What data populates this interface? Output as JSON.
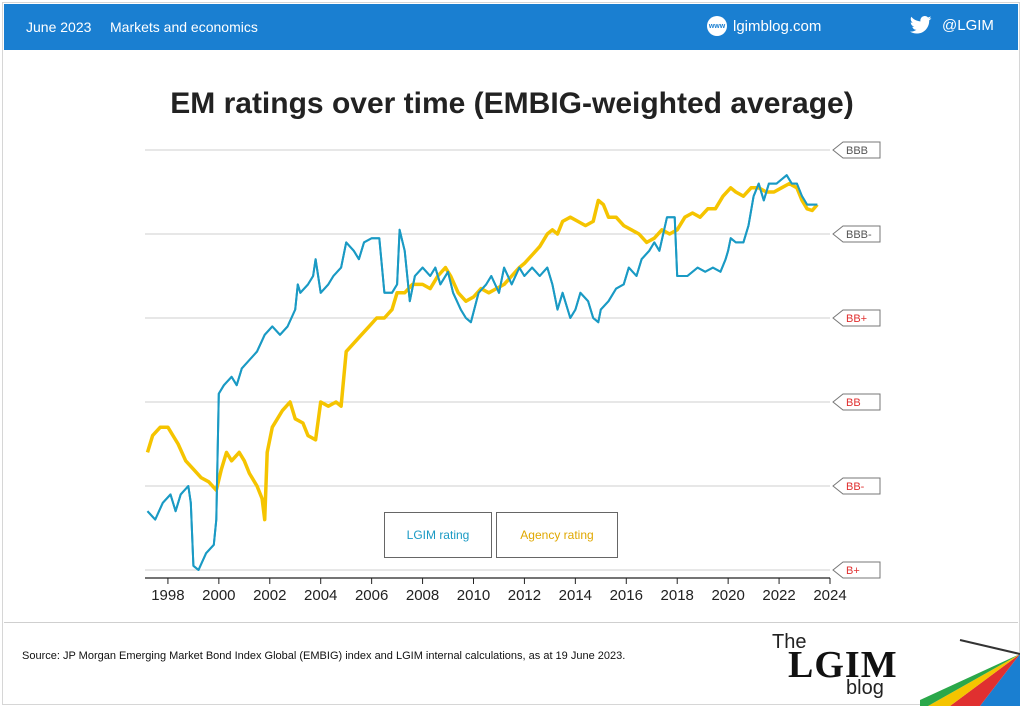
{
  "header": {
    "date": "June 2023",
    "section": "Markets and economics",
    "site": "lgimblog.com",
    "site_icon": "www",
    "twitter": "@LGIM",
    "bar_color": "#1a7fd1"
  },
  "footer": {
    "source": "Source: JP Morgan Emerging Market Bond Index Global (EMBIG) index and LGIM internal calculations, as at 19 June 2023.",
    "logo_the": "The",
    "logo_main": "LGIM",
    "logo_blog": "blog"
  },
  "chart_data": {
    "type": "line",
    "title": "EM ratings over time (EMBIG-weighted average)",
    "xlim": [
      1997.1,
      2024
    ],
    "ylim": [
      0,
      5.1
    ],
    "x_ticks": [
      1998,
      2000,
      2002,
      2004,
      2006,
      2008,
      2010,
      2012,
      2014,
      2016,
      2018,
      2020,
      2022,
      2024
    ],
    "y_categories": [
      {
        "label": "BBB",
        "value": 5,
        "color": "#555555"
      },
      {
        "label": "BBB-",
        "value": 4,
        "color": "#555555"
      },
      {
        "label": "BB+",
        "value": 3,
        "color": "#e03030"
      },
      {
        "label": "BB",
        "value": 2,
        "color": "#e03030"
      },
      {
        "label": "BB-",
        "value": 1,
        "color": "#e03030"
      },
      {
        "label": "B+",
        "value": 0,
        "color": "#e03030"
      }
    ],
    "grid": true,
    "series": [
      {
        "name": "LGIM rating",
        "color": "#1a9ac4",
        "points": [
          [
            1997.2,
            0.7
          ],
          [
            1997.5,
            0.6
          ],
          [
            1997.8,
            0.8
          ],
          [
            1998.1,
            0.9
          ],
          [
            1998.3,
            0.7
          ],
          [
            1998.5,
            0.9
          ],
          [
            1998.8,
            1.0
          ],
          [
            1998.9,
            0.8
          ],
          [
            1999.0,
            0.05
          ],
          [
            1999.2,
            0.0
          ],
          [
            1999.5,
            0.2
          ],
          [
            1999.8,
            0.3
          ],
          [
            1999.9,
            0.6
          ],
          [
            2000.0,
            2.1
          ],
          [
            2000.2,
            2.2
          ],
          [
            2000.5,
            2.3
          ],
          [
            2000.7,
            2.2
          ],
          [
            2000.9,
            2.4
          ],
          [
            2001.2,
            2.5
          ],
          [
            2001.5,
            2.6
          ],
          [
            2001.8,
            2.8
          ],
          [
            2002.1,
            2.9
          ],
          [
            2002.4,
            2.8
          ],
          [
            2002.7,
            2.9
          ],
          [
            2003.0,
            3.1
          ],
          [
            2003.1,
            3.4
          ],
          [
            2003.2,
            3.3
          ],
          [
            2003.5,
            3.4
          ],
          [
            2003.7,
            3.5
          ],
          [
            2003.8,
            3.7
          ],
          [
            2004.0,
            3.3
          ],
          [
            2004.3,
            3.4
          ],
          [
            2004.5,
            3.5
          ],
          [
            2004.8,
            3.6
          ],
          [
            2005.0,
            3.9
          ],
          [
            2005.3,
            3.8
          ],
          [
            2005.5,
            3.7
          ],
          [
            2005.7,
            3.9
          ],
          [
            2006.0,
            3.95
          ],
          [
            2006.3,
            3.95
          ],
          [
            2006.5,
            3.3
          ],
          [
            2006.8,
            3.3
          ],
          [
            2007.0,
            3.4
          ],
          [
            2007.1,
            4.05
          ],
          [
            2007.3,
            3.8
          ],
          [
            2007.5,
            3.2
          ],
          [
            2007.7,
            3.5
          ],
          [
            2008.0,
            3.6
          ],
          [
            2008.3,
            3.5
          ],
          [
            2008.5,
            3.6
          ],
          [
            2008.7,
            3.4
          ],
          [
            2009.0,
            3.55
          ],
          [
            2009.2,
            3.3
          ],
          [
            2009.5,
            3.1
          ],
          [
            2009.7,
            3.0
          ],
          [
            2009.9,
            2.95
          ],
          [
            2010.2,
            3.3
          ],
          [
            2010.5,
            3.4
          ],
          [
            2010.7,
            3.5
          ],
          [
            2011.0,
            3.3
          ],
          [
            2011.2,
            3.6
          ],
          [
            2011.5,
            3.4
          ],
          [
            2011.8,
            3.6
          ],
          [
            2012.0,
            3.5
          ],
          [
            2012.3,
            3.6
          ],
          [
            2012.6,
            3.5
          ],
          [
            2012.9,
            3.6
          ],
          [
            2013.1,
            3.4
          ],
          [
            2013.3,
            3.1
          ],
          [
            2013.5,
            3.3
          ],
          [
            2013.8,
            3.0
          ],
          [
            2014.0,
            3.1
          ],
          [
            2014.2,
            3.3
          ],
          [
            2014.5,
            3.2
          ],
          [
            2014.7,
            3.0
          ],
          [
            2014.9,
            2.95
          ],
          [
            2015.0,
            3.1
          ],
          [
            2015.3,
            3.2
          ],
          [
            2015.6,
            3.35
          ],
          [
            2015.9,
            3.4
          ],
          [
            2016.1,
            3.6
          ],
          [
            2016.4,
            3.5
          ],
          [
            2016.6,
            3.7
          ],
          [
            2016.9,
            3.8
          ],
          [
            2017.1,
            3.9
          ],
          [
            2017.3,
            3.8
          ],
          [
            2017.6,
            4.2
          ],
          [
            2017.9,
            4.2
          ],
          [
            2018.0,
            3.5
          ],
          [
            2018.4,
            3.5
          ],
          [
            2018.8,
            3.6
          ],
          [
            2019.1,
            3.55
          ],
          [
            2019.4,
            3.6
          ],
          [
            2019.7,
            3.55
          ],
          [
            2019.9,
            3.7
          ],
          [
            2020.0,
            3.8
          ],
          [
            2020.1,
            3.95
          ],
          [
            2020.3,
            3.9
          ],
          [
            2020.6,
            3.9
          ],
          [
            2020.8,
            4.1
          ],
          [
            2021.0,
            4.45
          ],
          [
            2021.2,
            4.6
          ],
          [
            2021.4,
            4.4
          ],
          [
            2021.6,
            4.6
          ],
          [
            2021.9,
            4.6
          ],
          [
            2022.1,
            4.65
          ],
          [
            2022.3,
            4.7
          ],
          [
            2022.5,
            4.6
          ],
          [
            2022.7,
            4.6
          ],
          [
            2022.9,
            4.45
          ],
          [
            2023.1,
            4.35
          ],
          [
            2023.3,
            4.35
          ],
          [
            2023.5,
            4.35
          ]
        ]
      },
      {
        "name": "Agency rating",
        "color": "#f5c400",
        "points": [
          [
            1997.2,
            1.4
          ],
          [
            1997.4,
            1.6
          ],
          [
            1997.7,
            1.7
          ],
          [
            1998.0,
            1.7
          ],
          [
            1998.2,
            1.6
          ],
          [
            1998.4,
            1.5
          ],
          [
            1998.7,
            1.3
          ],
          [
            1999.0,
            1.2
          ],
          [
            1999.3,
            1.1
          ],
          [
            1999.6,
            1.05
          ],
          [
            1999.9,
            0.95
          ],
          [
            2000.1,
            1.2
          ],
          [
            2000.3,
            1.4
          ],
          [
            2000.5,
            1.3
          ],
          [
            2000.8,
            1.4
          ],
          [
            2001.0,
            1.3
          ],
          [
            2001.2,
            1.15
          ],
          [
            2001.5,
            1.0
          ],
          [
            2001.7,
            0.85
          ],
          [
            2001.8,
            0.6
          ],
          [
            2001.9,
            1.4
          ],
          [
            2002.1,
            1.7
          ],
          [
            2002.3,
            1.8
          ],
          [
            2002.5,
            1.9
          ],
          [
            2002.8,
            2.0
          ],
          [
            2003.0,
            1.8
          ],
          [
            2003.3,
            1.75
          ],
          [
            2003.5,
            1.6
          ],
          [
            2003.8,
            1.55
          ],
          [
            2004.0,
            2.0
          ],
          [
            2004.3,
            1.95
          ],
          [
            2004.6,
            2.0
          ],
          [
            2004.8,
            1.95
          ],
          [
            2005.0,
            2.6
          ],
          [
            2005.3,
            2.7
          ],
          [
            2005.6,
            2.8
          ],
          [
            2005.9,
            2.9
          ],
          [
            2006.2,
            3.0
          ],
          [
            2006.5,
            3.0
          ],
          [
            2006.8,
            3.1
          ],
          [
            2007.0,
            3.3
          ],
          [
            2007.3,
            3.3
          ],
          [
            2007.6,
            3.4
          ],
          [
            2008.0,
            3.4
          ],
          [
            2008.3,
            3.35
          ],
          [
            2008.6,
            3.5
          ],
          [
            2008.9,
            3.6
          ],
          [
            2009.1,
            3.5
          ],
          [
            2009.4,
            3.3
          ],
          [
            2009.7,
            3.2
          ],
          [
            2010.0,
            3.25
          ],
          [
            2010.3,
            3.35
          ],
          [
            2010.6,
            3.3
          ],
          [
            2010.9,
            3.35
          ],
          [
            2011.2,
            3.4
          ],
          [
            2011.5,
            3.5
          ],
          [
            2011.8,
            3.6
          ],
          [
            2012.0,
            3.65
          ],
          [
            2012.3,
            3.75
          ],
          [
            2012.6,
            3.85
          ],
          [
            2012.9,
            4.0
          ],
          [
            2013.1,
            4.05
          ],
          [
            2013.3,
            4.0
          ],
          [
            2013.5,
            4.15
          ],
          [
            2013.8,
            4.2
          ],
          [
            2014.1,
            4.15
          ],
          [
            2014.4,
            4.1
          ],
          [
            2014.7,
            4.15
          ],
          [
            2014.9,
            4.4
          ],
          [
            2015.1,
            4.35
          ],
          [
            2015.3,
            4.2
          ],
          [
            2015.6,
            4.2
          ],
          [
            2015.9,
            4.1
          ],
          [
            2016.2,
            4.05
          ],
          [
            2016.5,
            4.0
          ],
          [
            2016.8,
            3.9
          ],
          [
            2017.1,
            3.95
          ],
          [
            2017.4,
            4.05
          ],
          [
            2017.7,
            4.0
          ],
          [
            2018.0,
            4.05
          ],
          [
            2018.3,
            4.2
          ],
          [
            2018.6,
            4.25
          ],
          [
            2018.9,
            4.2
          ],
          [
            2019.2,
            4.3
          ],
          [
            2019.5,
            4.3
          ],
          [
            2019.8,
            4.45
          ],
          [
            2020.1,
            4.55
          ],
          [
            2020.3,
            4.5
          ],
          [
            2020.6,
            4.45
          ],
          [
            2020.9,
            4.55
          ],
          [
            2021.2,
            4.55
          ],
          [
            2021.5,
            4.5
          ],
          [
            2021.8,
            4.5
          ],
          [
            2022.1,
            4.55
          ],
          [
            2022.4,
            4.6
          ],
          [
            2022.7,
            4.55
          ],
          [
            2022.9,
            4.4
          ],
          [
            2023.1,
            4.3
          ],
          [
            2023.3,
            4.28
          ],
          [
            2023.5,
            4.35
          ]
        ]
      }
    ]
  }
}
